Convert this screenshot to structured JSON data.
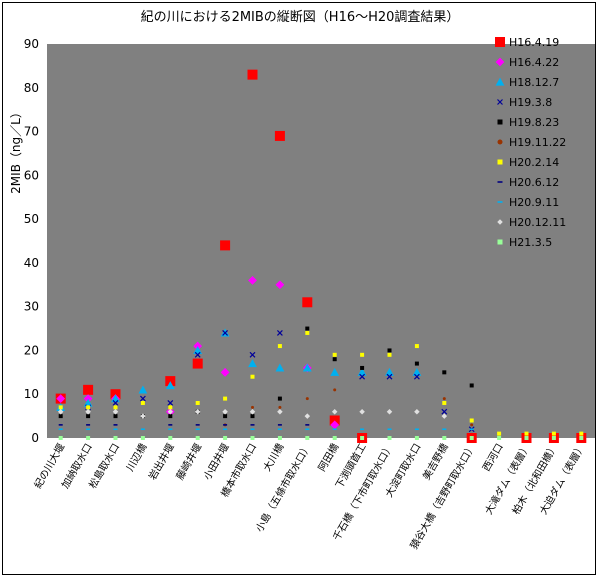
{
  "chart_data": {
    "type": "scatter",
    "title": "紀の川における2MIBの縦断図（H16～H20調査結果）",
    "ylabel": "2MIB（ng／L）",
    "ylim": [
      0,
      90
    ],
    "yticks": [
      0,
      10,
      20,
      30,
      40,
      50,
      60,
      70,
      80,
      90
    ],
    "grid": false,
    "legend_position": "right",
    "background": "#808080",
    "categories": [
      "紀の川大堰",
      "加納取水口",
      "松島取水口",
      "川辺橋",
      "岩出井堰",
      "藤崎井堰",
      "小田井堰",
      "橋本市取水口",
      "大川橋",
      "小島（五條市取水口）",
      "阿田橋",
      "下渕頭首工",
      "千石橋（下市町取水口）",
      "大淀町取水口",
      "美吉野橋",
      "猿谷大橋（吉野町取水口）",
      "西河口",
      "大滝ダム（表層）",
      "柏木（北和田橋）",
      "大迫ダム（表層）"
    ],
    "series": [
      {
        "name": "H16.4.19",
        "marker": "square",
        "color": "#ff0000",
        "size": 10,
        "values": [
          9,
          11,
          10,
          null,
          13,
          17,
          44,
          83,
          69,
          31,
          4,
          0,
          null,
          null,
          null,
          0,
          null,
          0,
          0,
          0
        ]
      },
      {
        "name": "H16.4.22",
        "marker": "diamond",
        "color": "#ff00ff",
        "size": 8,
        "values": [
          9,
          9,
          9,
          null,
          6,
          21,
          15,
          36,
          35,
          16,
          3,
          null,
          null,
          null,
          null,
          null,
          null,
          null,
          null,
          null
        ]
      },
      {
        "name": "H18.12.7",
        "marker": "triangle",
        "color": "#00b0f0",
        "size": 8,
        "values": [
          7,
          8,
          9,
          11,
          12,
          20,
          24,
          17,
          16,
          16,
          15,
          15,
          15,
          15,
          null,
          null,
          null,
          null,
          null,
          null
        ]
      },
      {
        "name": "H19.3.8",
        "marker": "x",
        "color": "#00009a",
        "size": 5,
        "values": [
          null,
          7,
          8,
          9,
          8,
          19,
          24,
          19,
          24,
          null,
          null,
          14,
          14,
          14,
          6,
          2,
          null,
          null,
          null,
          null
        ]
      },
      {
        "name": "H19.8.23",
        "marker": "smallsquare",
        "color": "#000000",
        "size": 4,
        "values": [
          5,
          5,
          5,
          5,
          5,
          6,
          5,
          5,
          9,
          25,
          18,
          16,
          20,
          17,
          15,
          12,
          null,
          null,
          null,
          null
        ]
      },
      {
        "name": "H19.11.22",
        "marker": "dot",
        "color": "#993300",
        "size": 3,
        "values": [
          6,
          6,
          6,
          null,
          6,
          null,
          3,
          7,
          7,
          9,
          11,
          null,
          null,
          null,
          9,
          3,
          null,
          null,
          null,
          null
        ]
      },
      {
        "name": "H20.2.14",
        "marker": "smallsquare",
        "color": "#ffff00",
        "size": 4,
        "values": [
          7,
          7,
          7,
          8,
          7,
          8,
          9,
          14,
          21,
          24,
          19,
          19,
          19,
          21,
          8,
          4,
          1,
          1,
          1,
          1
        ]
      },
      {
        "name": "H20.6.12",
        "marker": "dash",
        "color": "#000080",
        "size": 4,
        "values": [
          3,
          3,
          3,
          null,
          3,
          3,
          3,
          3,
          3,
          3,
          null,
          null,
          null,
          null,
          null,
          null,
          null,
          null,
          null,
          null
        ]
      },
      {
        "name": "H20.9.11",
        "marker": "dash",
        "color": "#00b0f0",
        "size": 4,
        "values": [
          2,
          2,
          2,
          2,
          2,
          2,
          2,
          2,
          2,
          2,
          2,
          2,
          2,
          2,
          2,
          2,
          null,
          null,
          null,
          null
        ]
      },
      {
        "name": "H20.12.11",
        "marker": "diamond",
        "color": "#e0e0e0",
        "size": 5,
        "values": [
          6,
          6,
          6,
          5,
          6,
          6,
          6,
          6,
          6,
          5,
          6,
          6,
          6,
          6,
          5,
          null,
          null,
          null,
          null,
          null
        ]
      },
      {
        "name": "H21.3.5",
        "marker": "smallsquare",
        "color": "#99ff99",
        "size": 4,
        "values": [
          0,
          0,
          0,
          0,
          0,
          0,
          0,
          0,
          0,
          0,
          0,
          0,
          0,
          0,
          0,
          0,
          0,
          0,
          0,
          0
        ]
      }
    ]
  }
}
